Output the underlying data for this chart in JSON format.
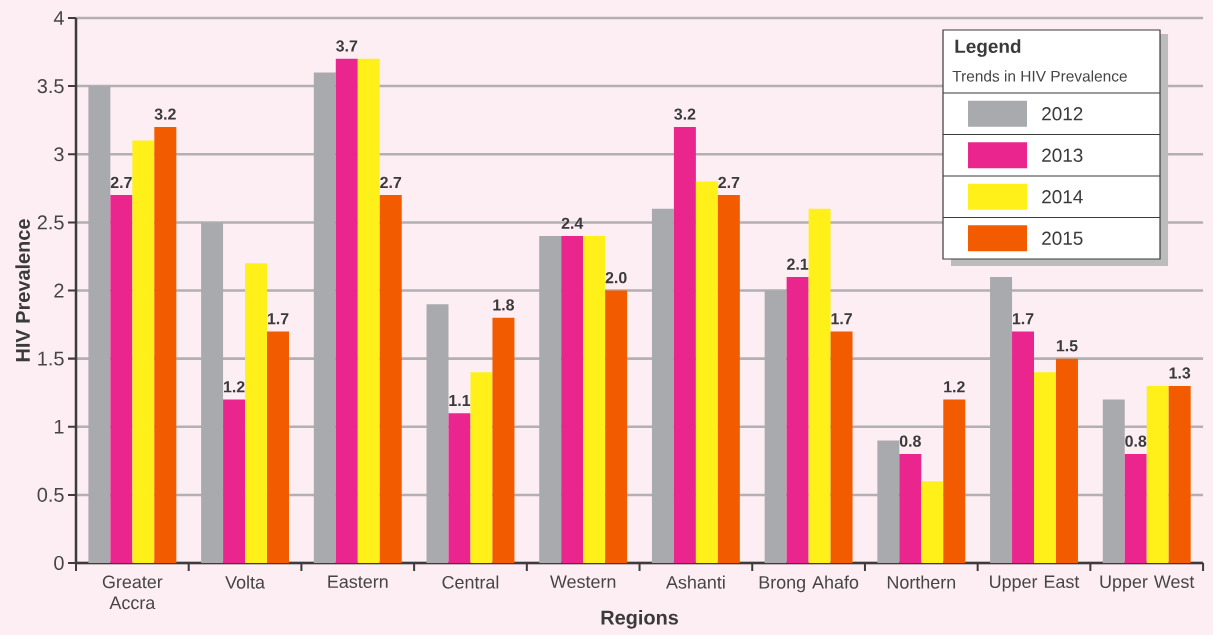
{
  "chart_data": {
    "type": "bar",
    "xlabel": "Regions",
    "ylabel": "HIV Prevalence",
    "legend_title": "Legend",
    "annotations": [
      "Trends in HIV Prevalence"
    ],
    "categories": [
      "Greater Accra",
      "Volta",
      "Eastern",
      "Central",
      "Western",
      "Ashanti",
      "Brong Ahafo",
      "Northern",
      "Upper East",
      "Upper West"
    ],
    "series": [
      {
        "name": "2012",
        "color": "#a9aaad",
        "values": [
          3.5,
          2.5,
          3.6,
          1.9,
          2.4,
          2.6,
          2.0,
          0.9,
          2.1,
          1.2
        ]
      },
      {
        "name": "2013",
        "color": "#ea268e",
        "values": [
          2.7,
          1.2,
          3.7,
          1.1,
          2.4,
          3.2,
          2.1,
          0.8,
          1.7,
          0.8
        ],
        "value_labels": [
          "2.7",
          "1.2",
          "3.7",
          "1.1",
          "2.4",
          "3.2",
          "2.1",
          "0.8",
          "1.7",
          "0.8"
        ]
      },
      {
        "name": "2014",
        "color": "#fff01a",
        "values": [
          3.1,
          2.2,
          3.7,
          1.4,
          2.4,
          2.8,
          2.6,
          0.6,
          1.4,
          1.3
        ]
      },
      {
        "name": "2015",
        "color": "#f25b00",
        "values": [
          3.2,
          1.7,
          2.7,
          1.8,
          2.0,
          2.7,
          1.7,
          1.2,
          1.5,
          1.3
        ],
        "value_labels": [
          "3.2",
          "1.7",
          "2.7",
          "1.8",
          "2.0",
          "2.7",
          "1.7",
          "1.2",
          "1.5",
          "1.3"
        ]
      }
    ],
    "ylim": [
      0,
      4
    ],
    "yticks": [
      0,
      0.5,
      1,
      1.5,
      2,
      2.5,
      3,
      3.5,
      4
    ],
    "grid": "y",
    "legend": "top right"
  }
}
